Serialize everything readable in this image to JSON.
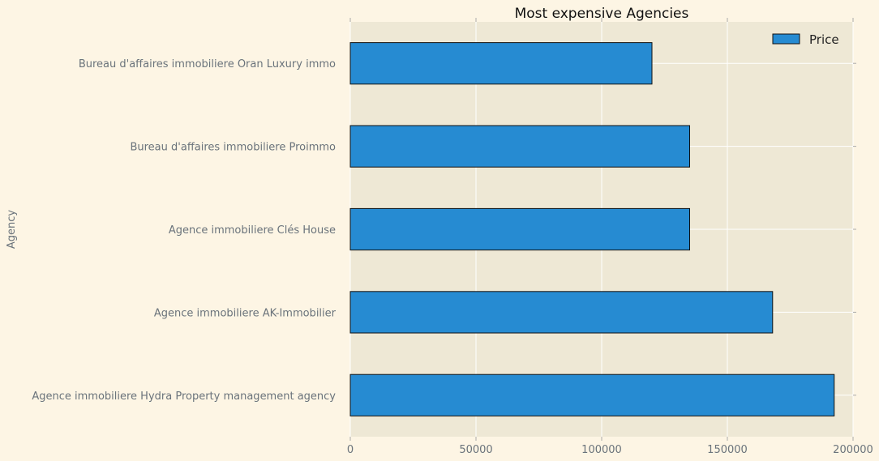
{
  "chart_data": {
    "type": "bar",
    "orientation": "horizontal",
    "title": "Most expensive Agencies",
    "xlabel": "",
    "ylabel": "Agency",
    "xlim": [
      0,
      200000
    ],
    "xticks": [
      0,
      50000,
      100000,
      150000,
      200000
    ],
    "xtick_labels": [
      "0",
      "50000",
      "100000",
      "150000",
      "200000"
    ],
    "categories": [
      "Agence immobiliere Hydra Property management agency",
      "Agence immobiliere AK-Immobilier",
      "Agence immobiliere Clés House",
      "Bureau d'affaires immobiliere Proimmo",
      "Bureau d'affaires immobiliere Oran Luxury immo"
    ],
    "series": [
      {
        "name": "Price",
        "values": [
          192500,
          168000,
          135000,
          135000,
          120000
        ]
      }
    ],
    "grid": true,
    "legend": "top-right",
    "colors": {
      "bar": "#268bd2",
      "plot_bg": "#eee8d5",
      "page_bg": "#fdf5e4",
      "grid": "#ffffff"
    }
  }
}
